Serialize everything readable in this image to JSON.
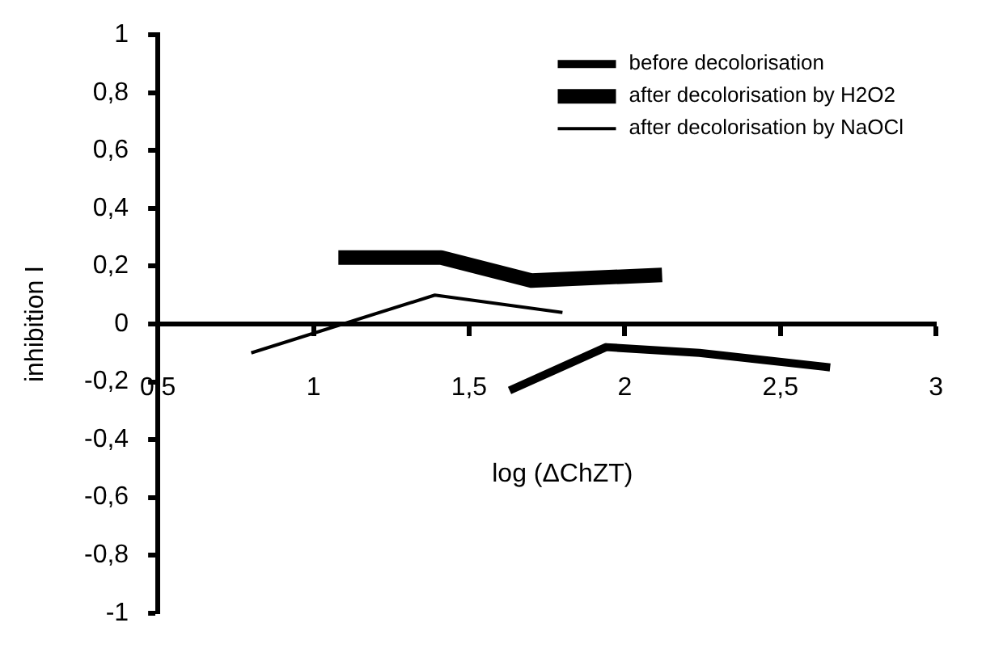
{
  "chart_data": {
    "type": "line",
    "xlabel": "log (ΔChZT)",
    "ylabel": "inhibition I",
    "xlim": [
      0.5,
      3
    ],
    "xticks": [
      {
        "value": 0.5,
        "label": "0,5"
      },
      1,
      {
        "value": 1.5,
        "label": "1,5"
      },
      2,
      {
        "value": 2.5,
        "label": "2,5"
      },
      3
    ],
    "ylim": [
      -1,
      1
    ],
    "yticks": [
      -1,
      {
        "value": -0.8,
        "label": "-0,8"
      },
      {
        "value": -0.6,
        "label": "-0,6"
      },
      {
        "value": -0.4,
        "label": "-0,4"
      },
      {
        "value": -0.2,
        "label": "-0,2"
      },
      0,
      {
        "value": 0.2,
        "label": "0,2"
      },
      {
        "value": 0.4,
        "label": "0,4"
      },
      {
        "value": 0.6,
        "label": "0,6"
      },
      {
        "value": 0.8,
        "label": "0,8"
      },
      1
    ],
    "grid": false,
    "legend": "top right",
    "marker": "none",
    "series": [
      {
        "name": "before decolorisation",
        "color": "#000000",
        "x": [
          1.63,
          1.94,
          2.24,
          2.66
        ],
        "values": [
          -0.23,
          -0.08,
          -0.1,
          -0.15
        ]
      },
      {
        "name": "after decolorisation by H2O2",
        "color": "#000000",
        "x": [
          1.08,
          1.41,
          1.7,
          2.12
        ],
        "values": [
          0.23,
          0.23,
          0.15,
          0.17
        ]
      },
      {
        "name": "after decolorisation by NaOCl",
        "color": "#000000",
        "x": [
          0.8,
          1.39,
          1.8
        ],
        "values": [
          -0.1,
          0.1,
          0.04
        ]
      }
    ]
  }
}
